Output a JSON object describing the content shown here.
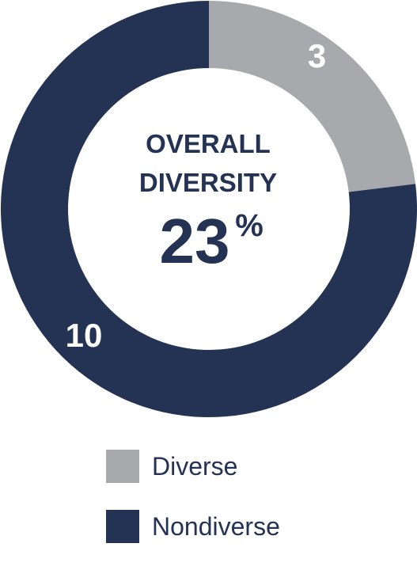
{
  "chart_data": {
    "type": "pie",
    "variant": "donut",
    "categories": [
      "Diverse",
      "Nondiverse"
    ],
    "values": [
      3,
      10
    ],
    "colors": [
      "#a7a9ac",
      "#243253"
    ],
    "center_title": [
      "OVERALL",
      "DIVERSITY"
    ],
    "center_value": "23",
    "center_unit": "%",
    "legend_placement": "bottom"
  }
}
